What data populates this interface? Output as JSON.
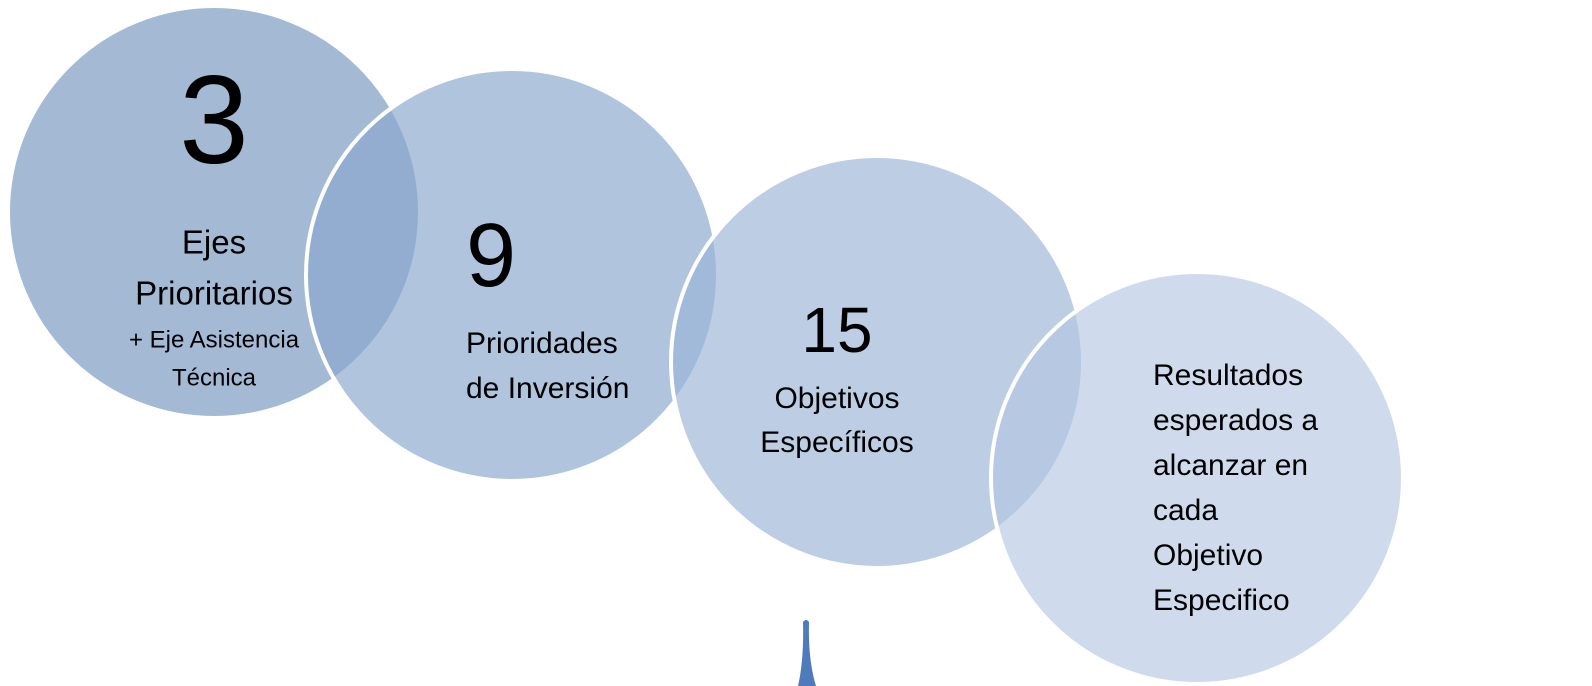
{
  "nodes": [
    {
      "number": "3",
      "label": [
        "Ejes",
        "Prioritarios"
      ],
      "note": [
        "+ Eje Asistencia",
        "Técnica"
      ]
    },
    {
      "number": "9",
      "label": [
        "Prioridades",
        "de Inversión"
      ]
    },
    {
      "number": "15",
      "label": [
        "Objetivos",
        "Específicos"
      ]
    },
    {
      "label": [
        "Resultados",
        "esperados a",
        "alcanzar en",
        "cada",
        "Objetivo",
        "Especifico"
      ]
    }
  ]
}
